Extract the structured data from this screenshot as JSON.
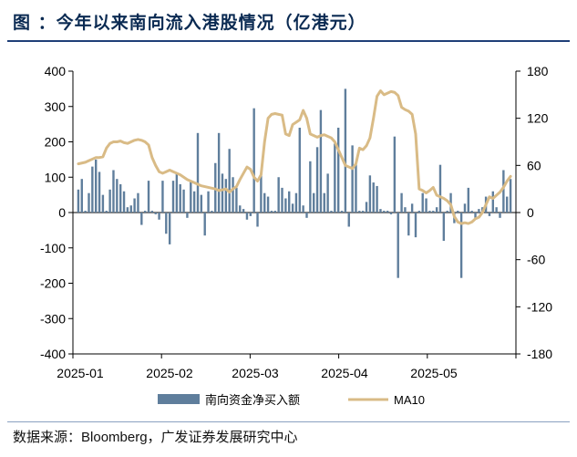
{
  "title": "图 ：今年以来南向流入港股情况（亿港元）",
  "source": {
    "label": "数据来源：",
    "text": "Bloomberg，广发证券发展研究中心"
  },
  "colors": {
    "bar": "#5f7e9c",
    "line": "#d9bb86",
    "axis": "#000000",
    "title": "#0a2a52"
  },
  "chart_data": {
    "type": "bar",
    "title": "",
    "xlabel": "",
    "ylabel": "",
    "ylim": [
      -400,
      400
    ],
    "yticks": [
      -400,
      -300,
      -200,
      -100,
      0,
      100,
      200,
      300,
      400
    ],
    "y2lim": [
      -180,
      180
    ],
    "y2ticks": [
      -180,
      -120,
      -60,
      0,
      60,
      120,
      180
    ],
    "x_tick_labels": [
      "2025-01",
      "2025-02",
      "2025-03",
      "2025-04",
      "2025-05"
    ],
    "legend": {
      "position": "bottom",
      "entries": [
        "南向资金净买入额",
        "MA10"
      ]
    },
    "grid": false,
    "series": [
      {
        "name": "南向资金净买入额",
        "type": "bar",
        "axis": "left",
        "values": [
          65,
          95,
          5,
          55,
          130,
          150,
          115,
          50,
          5,
          65,
          120,
          95,
          80,
          60,
          15,
          20,
          40,
          55,
          -35,
          5,
          90,
          5,
          -5,
          -20,
          90,
          -60,
          -90,
          90,
          110,
          80,
          65,
          -15,
          90,
          60,
          225,
          50,
          -65,
          60,
          5,
          140,
          225,
          110,
          95,
          180,
          100,
          70,
          20,
          10,
          -20,
          -10,
          295,
          -40,
          110,
          55,
          45,
          5,
          5,
          100,
          70,
          40,
          60,
          25,
          55,
          240,
          20,
          -15,
          145,
          55,
          185,
          290,
          55,
          110,
          5,
          195,
          240,
          5,
          350,
          -40,
          190,
          140,
          5,
          5,
          30,
          105,
          85,
          75,
          10,
          5,
          5,
          -5,
          215,
          -185,
          55,
          15,
          -65,
          25,
          -70,
          5,
          55,
          40,
          5,
          5,
          15,
          135,
          -80,
          5,
          55,
          -30,
          5,
          -185,
          25,
          70,
          5,
          -15,
          10,
          15,
          45,
          -10,
          60,
          15,
          -15,
          120,
          45,
          95
        ]
      },
      {
        "name": "MA10",
        "type": "line",
        "axis": "right",
        "values": [
          62,
          63,
          64,
          66,
          68,
          70,
          70,
          71,
          82,
          88,
          90,
          90,
          91,
          89,
          88,
          90,
          92,
          93,
          92,
          90,
          86,
          70,
          60,
          52,
          50,
          52,
          54,
          52,
          50,
          48,
          45,
          42,
          40,
          38,
          36,
          34,
          33,
          32,
          31,
          30,
          28,
          29,
          30,
          26,
          30,
          33,
          42,
          50,
          58,
          55,
          45,
          40,
          48,
          90,
          120,
          125,
          126,
          125,
          124,
          100,
          98,
          112,
          115,
          118,
          130,
          120,
          100,
          98,
          96,
          98,
          99,
          97,
          95,
          90,
          80,
          70,
          60,
          58,
          56,
          62,
          82,
          80,
          85,
          95,
          120,
          148,
          155,
          150,
          152,
          154,
          153,
          149,
          134,
          131,
          129,
          125,
          100,
          30,
          28,
          25,
          28,
          32,
          22,
          20,
          18,
          15,
          10,
          -5,
          -12,
          -14,
          -13,
          -14,
          -12,
          -8,
          -6,
          0,
          10,
          20,
          18,
          22,
          26,
          32,
          40,
          46
        ]
      }
    ]
  }
}
